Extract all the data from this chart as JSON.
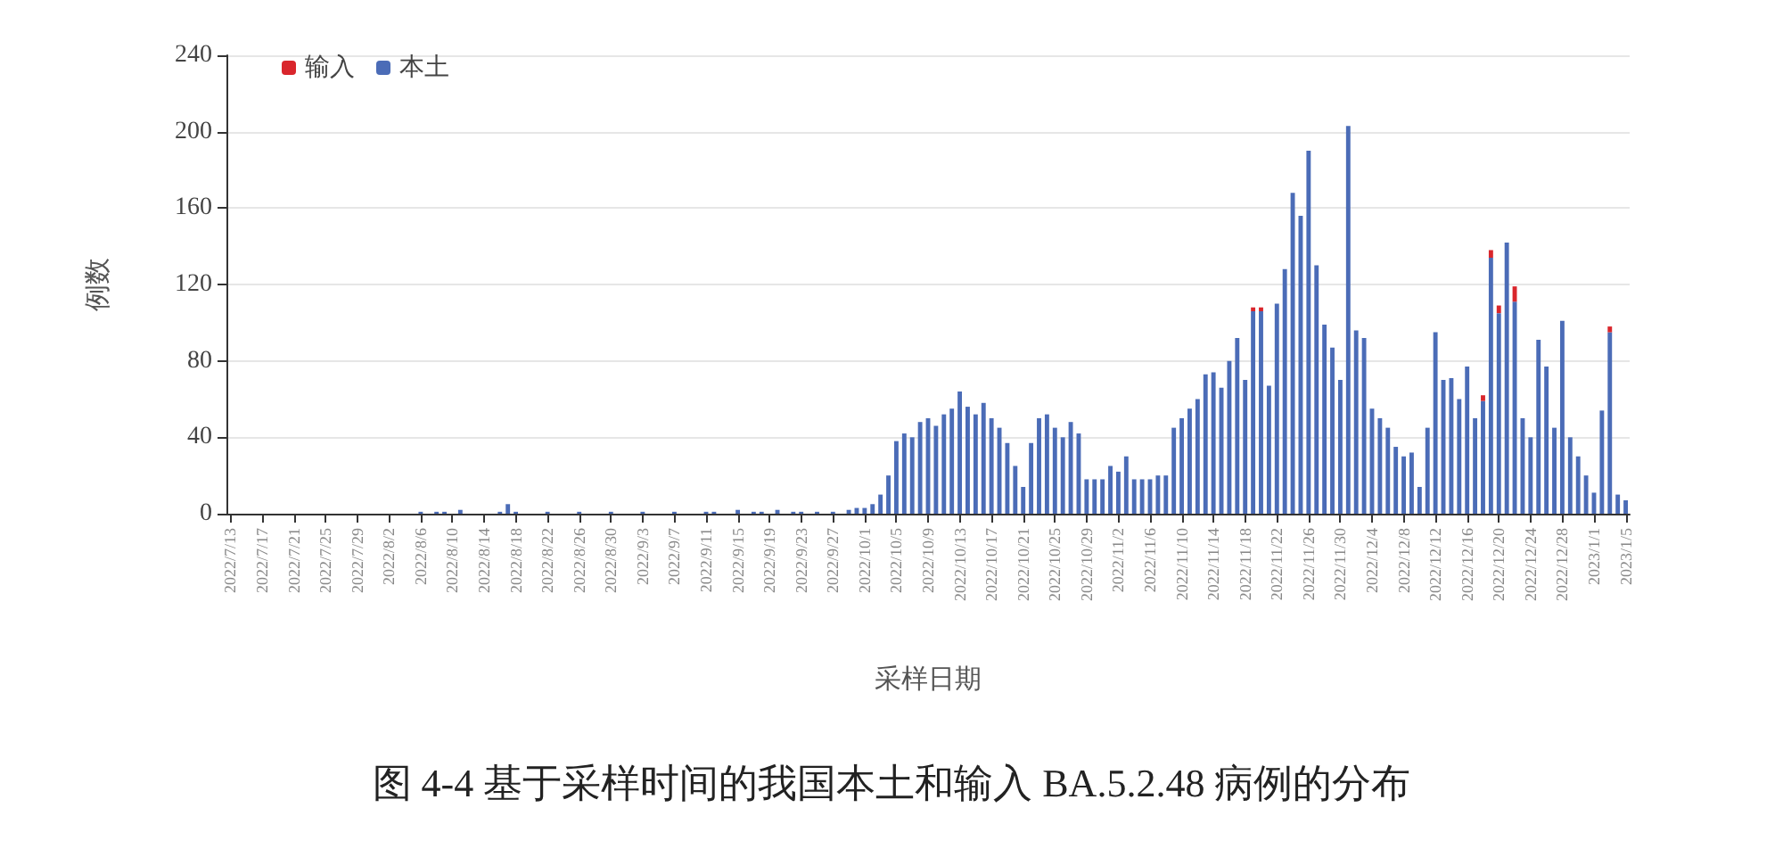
{
  "chart_data": {
    "type": "bar",
    "stacked": true,
    "ylabel": "例数",
    "xlabel": "采样日期",
    "annotations": [
      "图 4-4 基于采样时间的我国本土和输入 BA.5.2.48 病例的分布"
    ],
    "categories": [
      "2022/7/13",
      null,
      null,
      null,
      "2022/7/17",
      null,
      null,
      null,
      "2022/7/21",
      null,
      null,
      null,
      "2022/7/25",
      null,
      null,
      null,
      "2022/7/29",
      null,
      null,
      null,
      "2022/8/2",
      null,
      null,
      null,
      "2022/8/6",
      null,
      null,
      null,
      "2022/8/10",
      null,
      null,
      null,
      "2022/8/14",
      null,
      null,
      null,
      "2022/8/18",
      null,
      null,
      null,
      "2022/8/22",
      null,
      null,
      null,
      "2022/8/26",
      null,
      null,
      null,
      "2022/8/30",
      null,
      null,
      null,
      "2022/9/3",
      null,
      null,
      null,
      "2022/9/7",
      null,
      null,
      null,
      "2022/9/11",
      null,
      null,
      null,
      "2022/9/15",
      null,
      null,
      null,
      "2022/9/19",
      null,
      null,
      null,
      "2022/9/23",
      null,
      null,
      null,
      "2022/9/27",
      null,
      null,
      null,
      "2022/10/1",
      null,
      null,
      null,
      "2022/10/5",
      null,
      null,
      null,
      "2022/10/9",
      null,
      null,
      null,
      "2022/10/13",
      null,
      null,
      null,
      "2022/10/17",
      null,
      null,
      null,
      "2022/10/21",
      null,
      null,
      null,
      "2022/10/25",
      null,
      null,
      null,
      "2022/10/29",
      null,
      null,
      null,
      "2022/11/2",
      null,
      null,
      null,
      "2022/11/6",
      null,
      null,
      null,
      "2022/11/10",
      null,
      null,
      null,
      "2022/11/14",
      null,
      null,
      null,
      "2022/11/18",
      null,
      null,
      null,
      "2022/11/22",
      null,
      null,
      null,
      "2022/11/26",
      null,
      null,
      null,
      "2022/11/30",
      null,
      null,
      null,
      "2022/12/4",
      null,
      null,
      null,
      "2022/12/8",
      null,
      null,
      null,
      "2022/12/12",
      null,
      null,
      null,
      "2022/12/16",
      null,
      null,
      null,
      "2022/12/20",
      null,
      null,
      null,
      "2022/12/24",
      null,
      null,
      null,
      "2022/12/28",
      null,
      null,
      null,
      "2023/1/1",
      null,
      null,
      null,
      "2023/1/5"
    ],
    "series": [
      {
        "name": "本土",
        "color": "#4b6cb7",
        "values": [
          0,
          0,
          0,
          0,
          0,
          0,
          0,
          0,
          0,
          0,
          0,
          0,
          0,
          0,
          0,
          0,
          0,
          0,
          0,
          0,
          0,
          0,
          0,
          0,
          1,
          0,
          1,
          1,
          0,
          2,
          0,
          0,
          0,
          0,
          1,
          5,
          1,
          0,
          0,
          0,
          1,
          0,
          0,
          0,
          1,
          0,
          0,
          0,
          1,
          0,
          0,
          0,
          1,
          0,
          0,
          0,
          1,
          0,
          0,
          0,
          1,
          1,
          0,
          0,
          2,
          0,
          1,
          1,
          0,
          2,
          0,
          1,
          1,
          0,
          1,
          0,
          1,
          0,
          2,
          3,
          3,
          5,
          10,
          20,
          38,
          42,
          40,
          48,
          50,
          46,
          52,
          55,
          64,
          56,
          52,
          58,
          50,
          45,
          37,
          25,
          14,
          37,
          50,
          52,
          45,
          40,
          48,
          42,
          18,
          18,
          18,
          25,
          22,
          30,
          18,
          18,
          18,
          20,
          20,
          45,
          50,
          55,
          60,
          73,
          74,
          66,
          80,
          92,
          70,
          106,
          106,
          67,
          110,
          128,
          168,
          156,
          190,
          130,
          99,
          87,
          70,
          203,
          96,
          92,
          55,
          50,
          45,
          35,
          30,
          32,
          14,
          45,
          95,
          70,
          71,
          60,
          77,
          50,
          59,
          134,
          105,
          142,
          111,
          50,
          40,
          91,
          77,
          45,
          101,
          40,
          30,
          20,
          11,
          54,
          95,
          10,
          7
        ]
      },
      {
        "name": "输入",
        "color": "#d9262c",
        "values": [
          0,
          0,
          0,
          0,
          0,
          0,
          0,
          0,
          0,
          0,
          0,
          0,
          0,
          0,
          0,
          0,
          0,
          0,
          0,
          0,
          0,
          0,
          0,
          0,
          0,
          0,
          0,
          0,
          0,
          0,
          0,
          0,
          0,
          0,
          0,
          0,
          0,
          0,
          0,
          0,
          0,
          0,
          0,
          0,
          0,
          0,
          0,
          0,
          0,
          0,
          0,
          0,
          0,
          0,
          0,
          0,
          0,
          0,
          0,
          0,
          0,
          0,
          0,
          0,
          0,
          0,
          0,
          0,
          0,
          0,
          0,
          0,
          0,
          0,
          0,
          0,
          0,
          0,
          0,
          0,
          0,
          0,
          0,
          0,
          0,
          0,
          0,
          0,
          0,
          0,
          0,
          0,
          0,
          0,
          0,
          0,
          0,
          0,
          0,
          0,
          0,
          0,
          0,
          0,
          0,
          0,
          0,
          0,
          0,
          0,
          0,
          0,
          0,
          0,
          0,
          0,
          0,
          0,
          0,
          0,
          0,
          0,
          0,
          0,
          0,
          0,
          0,
          0,
          0,
          2,
          2,
          0,
          0,
          0,
          0,
          0,
          0,
          0,
          0,
          0,
          0,
          0,
          0,
          0,
          0,
          0,
          0,
          0,
          0,
          0,
          0,
          0,
          0,
          0,
          0,
          0,
          0,
          0,
          3,
          4,
          4,
          0,
          8,
          0,
          0,
          0,
          0,
          0,
          0,
          0,
          0,
          0,
          0,
          0,
          3,
          0,
          0
        ]
      }
    ],
    "ylim": [
      0,
      240
    ],
    "yticks": [
      0,
      40,
      80,
      120,
      160,
      200,
      240
    ],
    "grid": "y",
    "legend": "top left"
  }
}
